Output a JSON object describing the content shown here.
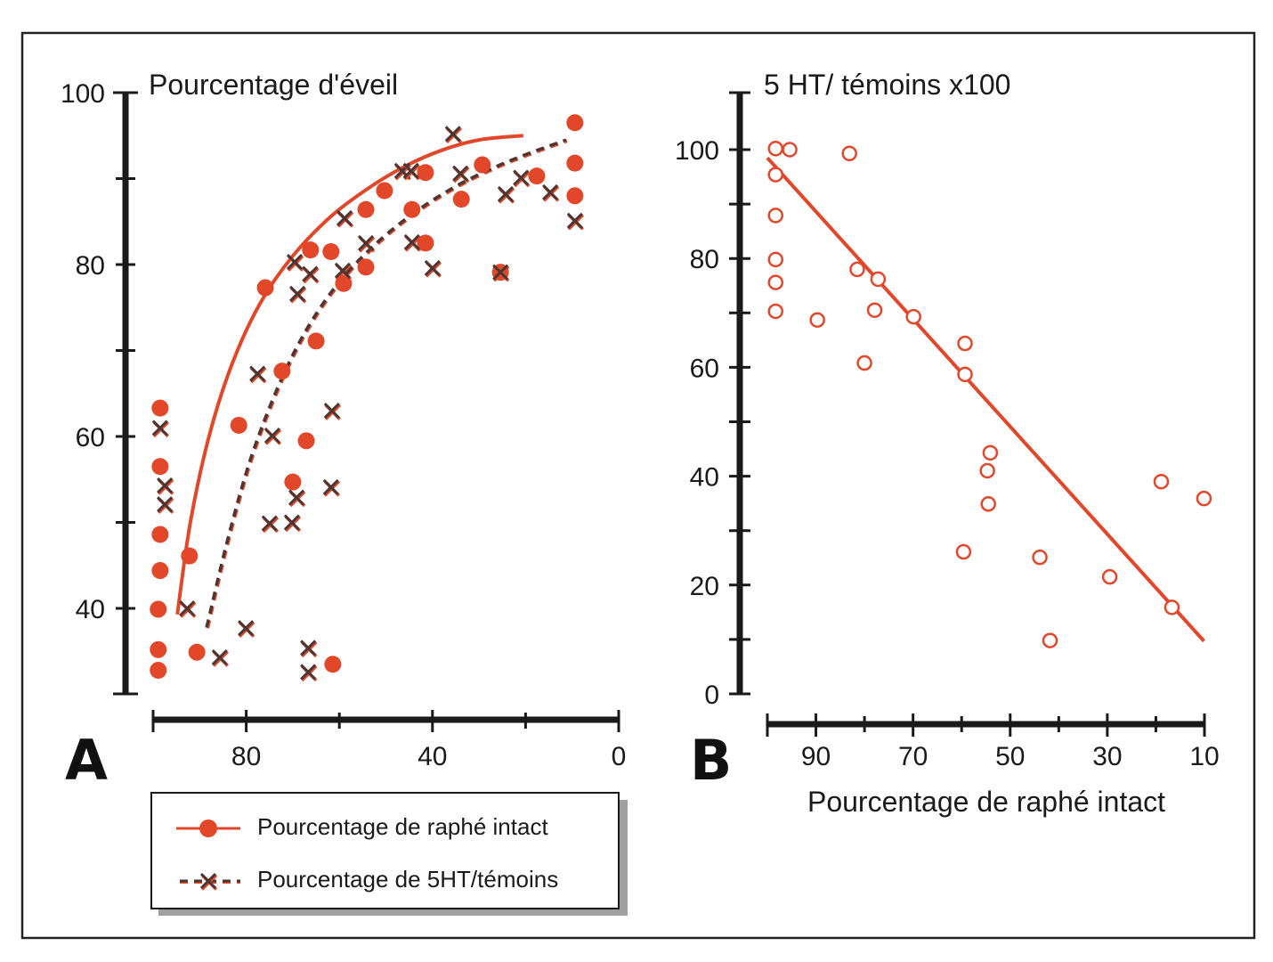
{
  "colors": {
    "accent": "#e2472a",
    "cross": "#4a3632",
    "axis": "#1a1a1a",
    "frame": "#222222",
    "legend_shadow": "#9a9a9a"
  },
  "chart_data": [
    {
      "panel": "A",
      "type": "scatter",
      "title": "Pourcentage d'éveil",
      "xlabel": "",
      "ylabel": "Pourcentage d'éveil",
      "xlim": [
        100,
        0
      ],
      "ylim": [
        30,
        100
      ],
      "x_ticks": [
        100,
        80,
        60,
        40,
        20,
        0
      ],
      "x_tick_labels": [
        "",
        "80",
        "",
        "40",
        "",
        "0"
      ],
      "y_ticks": [
        30,
        40,
        50,
        60,
        70,
        80,
        90,
        100
      ],
      "y_tick_labels": [
        "",
        "40",
        "",
        "60",
        "",
        "80",
        "",
        "100"
      ],
      "grid": false,
      "legend": {
        "placement": "bottom",
        "entries": [
          {
            "label": "Pourcentage de raphé intact",
            "marker": "filled-circle",
            "line": "solid"
          },
          {
            "label": "Pourcentage de 5HT/témoins",
            "marker": "cross",
            "line": "dashed"
          }
        ]
      },
      "series": [
        {
          "name": "Pourcentage de raphé intact",
          "marker": "filled-circle",
          "points": [
            [
              98.5,
              63.3
            ],
            [
              98.5,
              56.5
            ],
            [
              98.5,
              48.6
            ],
            [
              98.5,
              44.4
            ],
            [
              98.9,
              39.9
            ],
            [
              98.9,
              35.2
            ],
            [
              98.9,
              32.8
            ],
            [
              92.2,
              46.1
            ],
            [
              90.6,
              34.9
            ],
            [
              81.6,
              61.3
            ],
            [
              75.9,
              77.3
            ],
            [
              72.3,
              67.6
            ],
            [
              67.1,
              59.5
            ],
            [
              70.0,
              54.7
            ],
            [
              65.0,
              71.1
            ],
            [
              66.2,
              81.7
            ],
            [
              61.8,
              81.5
            ],
            [
              59.1,
              77.8
            ],
            [
              54.3,
              79.7
            ],
            [
              54.3,
              86.4
            ],
            [
              50.3,
              88.6
            ],
            [
              44.4,
              86.4
            ],
            [
              41.5,
              90.7
            ],
            [
              41.5,
              82.5
            ],
            [
              33.8,
              87.6
            ],
            [
              29.3,
              91.6
            ],
            [
              25.4,
              79.1
            ],
            [
              17.6,
              90.3
            ],
            [
              9.4,
              96.5
            ],
            [
              9.4,
              91.8
            ],
            [
              9.4,
              88.0
            ],
            [
              61.4,
              33.5
            ]
          ],
          "fit_curve": [
            [
              94.8,
              39.3
            ],
            [
              92.0,
              50.0
            ],
            [
              88.0,
              60.0
            ],
            [
              83.0,
              68.5
            ],
            [
              77.0,
              75.5
            ],
            [
              70.0,
              81.0
            ],
            [
              62.0,
              85.5
            ],
            [
              54.0,
              88.8
            ],
            [
              46.0,
              91.4
            ],
            [
              38.0,
              93.3
            ],
            [
              30.0,
              94.5
            ],
            [
              20.5,
              95.0
            ]
          ]
        },
        {
          "name": "Pourcentage de 5HT/témoins",
          "marker": "cross",
          "points": [
            [
              98.5,
              61.0
            ],
            [
              97.5,
              54.3
            ],
            [
              97.5,
              52.1
            ],
            [
              92.7,
              40.0
            ],
            [
              85.7,
              34.3
            ],
            [
              80.1,
              37.7
            ],
            [
              77.6,
              67.3
            ],
            [
              74.4,
              60.1
            ],
            [
              75.0,
              49.9
            ],
            [
              70.2,
              50.0
            ],
            [
              69.6,
              80.3
            ],
            [
              69.0,
              76.6
            ],
            [
              66.3,
              78.9
            ],
            [
              69.2,
              52.9
            ],
            [
              66.7,
              35.4
            ],
            [
              66.7,
              32.6
            ],
            [
              61.6,
              63.0
            ],
            [
              61.8,
              54.1
            ],
            [
              58.9,
              85.4
            ],
            [
              59.3,
              79.3
            ],
            [
              54.3,
              82.5
            ],
            [
              46.5,
              90.9
            ],
            [
              44.6,
              90.9
            ],
            [
              44.4,
              82.6
            ],
            [
              40.0,
              79.6
            ],
            [
              35.6,
              95.2
            ],
            [
              34.0,
              90.6
            ],
            [
              25.4,
              79.1
            ],
            [
              24.3,
              88.2
            ],
            [
              21.0,
              90.1
            ],
            [
              14.7,
              88.4
            ],
            [
              9.4,
              85.1
            ]
          ],
          "fit_curve": [
            [
              88.5,
              37.8
            ],
            [
              84.0,
              48.0
            ],
            [
              79.0,
              57.5
            ],
            [
              73.0,
              66.0
            ],
            [
              67.0,
              72.5
            ],
            [
              60.0,
              78.0
            ],
            [
              52.0,
              82.5
            ],
            [
              44.0,
              86.0
            ],
            [
              36.0,
              88.8
            ],
            [
              28.0,
              91.0
            ],
            [
              20.0,
              92.8
            ],
            [
              11.3,
              94.5
            ]
          ]
        }
      ]
    },
    {
      "panel": "B",
      "type": "scatter",
      "title": "5 HT/ témoins x100",
      "xlabel": "Pourcentage de raphé intact",
      "ylabel": "5 HT/ témoins x100",
      "xlim": [
        100,
        10
      ],
      "ylim": [
        0,
        110
      ],
      "x_ticks": [
        100,
        90,
        80,
        70,
        60,
        50,
        40,
        30,
        20,
        10
      ],
      "x_tick_labels": [
        "",
        "90",
        "",
        "70",
        "",
        "50",
        "",
        "30",
        "",
        "10"
      ],
      "y_ticks": [
        0,
        10,
        20,
        30,
        40,
        50,
        60,
        70,
        80,
        90,
        100,
        110
      ],
      "y_tick_labels": [
        "0",
        "",
        "20",
        "",
        "40",
        "",
        "60",
        "",
        "80",
        "",
        "100",
        ""
      ],
      "grid": false,
      "series": [
        {
          "name": "5 HT/ témoins x100",
          "marker": "open-circle",
          "points": [
            [
              98.3,
              100.2
            ],
            [
              95.4,
              100.0
            ],
            [
              83.1,
              99.3
            ],
            [
              98.3,
              95.4
            ],
            [
              98.3,
              87.9
            ],
            [
              98.3,
              79.8
            ],
            [
              98.3,
              75.6
            ],
            [
              98.3,
              70.3
            ],
            [
              89.7,
              68.7
            ],
            [
              81.5,
              78.0
            ],
            [
              77.2,
              76.2
            ],
            [
              77.9,
              70.5
            ],
            [
              69.9,
              69.3
            ],
            [
              80.0,
              60.8
            ],
            [
              59.3,
              64.4
            ],
            [
              59.3,
              58.7
            ],
            [
              54.1,
              44.3
            ],
            [
              54.7,
              41.0
            ],
            [
              54.5,
              34.9
            ],
            [
              59.6,
              26.1
            ],
            [
              43.9,
              25.1
            ],
            [
              41.8,
              9.8
            ],
            [
              29.5,
              21.5
            ],
            [
              18.9,
              39.0
            ],
            [
              16.7,
              15.9
            ],
            [
              10.1,
              35.9
            ]
          ],
          "fit_line": [
            [
              100,
              98.5
            ],
            [
              10.1,
              9.7
            ]
          ]
        }
      ]
    }
  ]
}
